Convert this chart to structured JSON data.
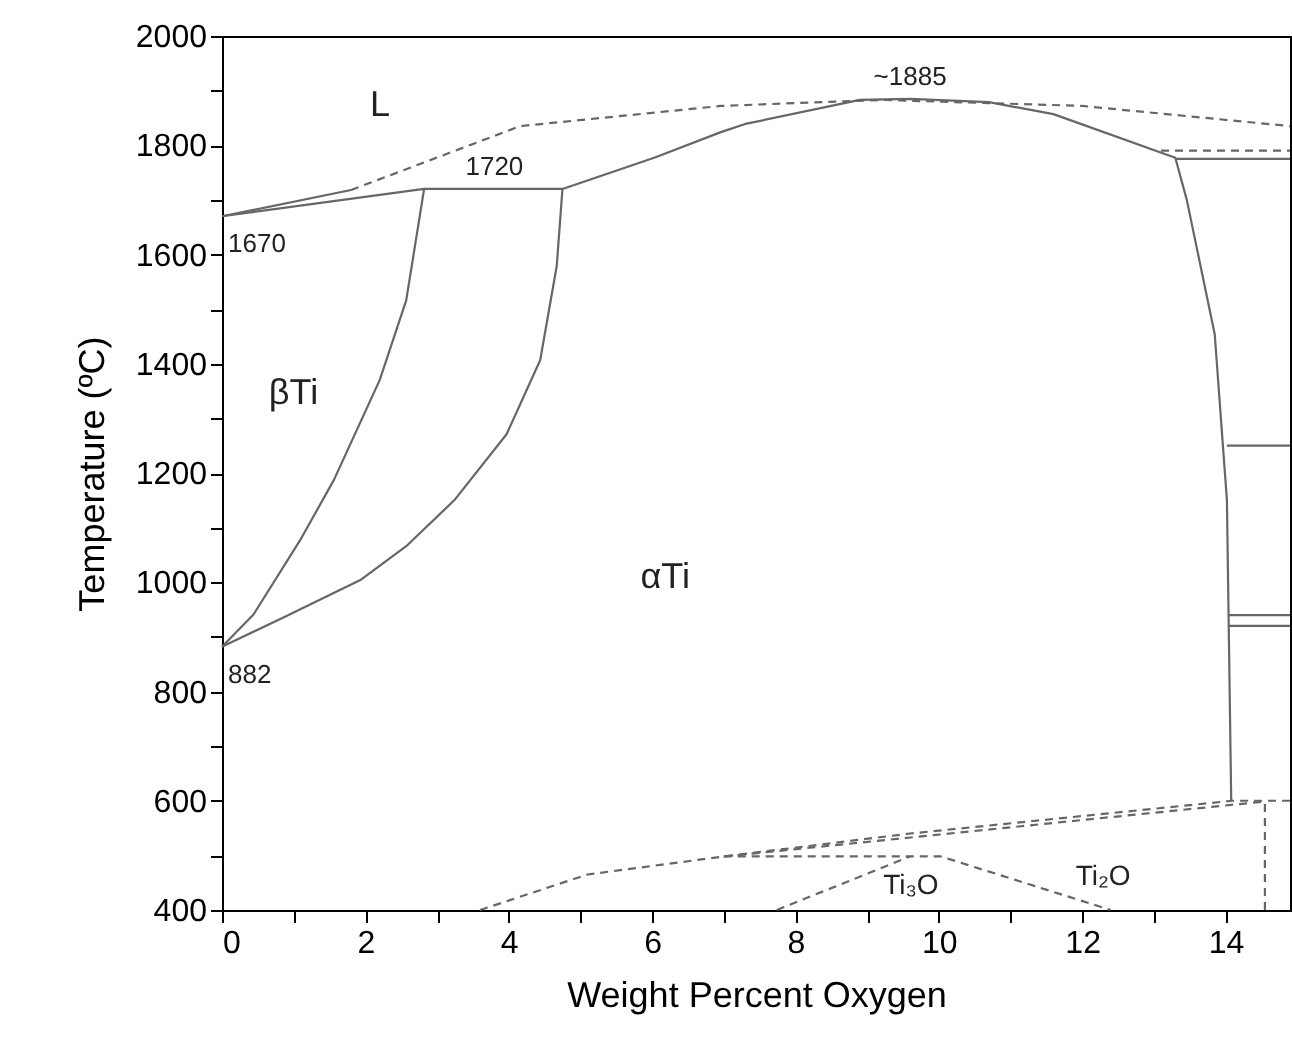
{
  "chart_data": {
    "type": "line",
    "xlabel": "Weight Percent Oxygen",
    "ylabel": "Temperature (ºC)",
    "xlim": [
      0,
      14.9
    ],
    "ylim": [
      400,
      2000
    ],
    "xticks": [
      0,
      {
        "value": 1,
        "label": null
      },
      2,
      {
        "value": 3,
        "label": null
      },
      4,
      {
        "value": 5,
        "label": null
      },
      6,
      {
        "value": 7,
        "label": null
      },
      8,
      {
        "value": 9,
        "label": null
      },
      10,
      {
        "value": 11,
        "label": null
      },
      12,
      {
        "value": 13,
        "label": null
      },
      14
    ],
    "yticks": [
      400,
      {
        "value": 500,
        "label": null
      },
      600,
      {
        "value": 700,
        "label": null
      },
      800,
      {
        "value": 900,
        "label": null
      },
      1000,
      {
        "value": 1100,
        "label": null
      },
      1200,
      {
        "value": 1300,
        "label": null
      },
      1400,
      {
        "value": 1500,
        "label": null
      },
      1600,
      {
        "value": 1700,
        "label": null
      },
      1800,
      {
        "value": 1900,
        "label": null
      },
      2000
    ],
    "line_style": "solid",
    "series": [
      {
        "color": "#666666",
        "x": [
          0,
          1.8
        ],
        "values": [
          1670,
          1718
        ]
      },
      {
        "color": "#666666",
        "x": [
          0,
          2.82,
          4.75,
          6.03,
          6.96,
          7.3,
          8.9,
          9.6,
          10.7,
          11.6,
          13.3,
          13.46,
          13.85,
          14.02,
          14.08
        ],
        "values": [
          1670,
          1720,
          1720,
          1777,
          1824,
          1839,
          1883,
          1885,
          1879,
          1857,
          1777,
          1700,
          1454,
          1150,
          600
        ]
      },
      {
        "color": "#666666",
        "line_style": "dashed",
        "x": [
          1.8,
          4.16,
          6.96,
          9.2,
          12.0,
          14.9
        ],
        "values": [
          1718,
          1835,
          1872,
          1883,
          1872,
          1835
        ]
      },
      {
        "color": "#666666",
        "line_style": "dashed",
        "x": [
          13.1,
          14.9
        ],
        "values": [
          1790,
          1790
        ]
      },
      {
        "color": "#666666",
        "x": [
          13.3,
          14.9
        ],
        "values": [
          1775,
          1775
        ]
      },
      {
        "color": "#666666",
        "x": [
          14.02,
          14.9
        ],
        "values": [
          1250,
          1250
        ]
      },
      {
        "color": "#666666",
        "x": [
          14.05,
          14.9
        ],
        "values": [
          940,
          940
        ]
      },
      {
        "color": "#666666",
        "x": [
          14.05,
          14.9
        ],
        "values": [
          920,
          920
        ]
      },
      {
        "color": "#666666",
        "x": [
          0,
          0.44,
          1.09,
          1.56,
          2.2,
          2.57,
          2.82
        ],
        "values": [
          882,
          941,
          1077,
          1187,
          1370,
          1516,
          1720
        ]
      },
      {
        "color": "#666666",
        "x": [
          0,
          0.9,
          1.93,
          2.57,
          3.24,
          3.97,
          4.44,
          4.67,
          4.75
        ],
        "values": [
          882,
          938,
          1004,
          1066,
          1150,
          1271,
          1407,
          1579,
          1720
        ]
      },
      {
        "color": "#666666",
        "line_style": "dashed",
        "x": [
          3.6,
          5.1,
          7.0,
          9.6,
          14.1,
          14.9
        ],
        "values": [
          400,
          465,
          498,
          540,
          600,
          600
        ]
      },
      {
        "color": "#666666",
        "line_style": "dashed",
        "x": [
          7.0,
          14.5
        ],
        "values": [
          498,
          598
        ]
      },
      {
        "color": "#666666",
        "line_style": "dashed",
        "x": [
          7.0,
          10.03,
          12.4
        ],
        "values": [
          498,
          498,
          400
        ]
      },
      {
        "color": "#666666",
        "line_style": "dashed",
        "x": [
          7.74,
          9.6
        ],
        "values": [
          400,
          498
        ]
      },
      {
        "color": "#666666",
        "line_style": "dashed",
        "x": [
          14.55,
          14.55
        ],
        "values": [
          400,
          598
        ]
      }
    ],
    "annotations": [
      "L",
      "βTi",
      "αTi",
      "Ti₃O",
      "Ti₂O",
      {
        "text": "~1885",
        "x": 9.6,
        "y": 1885
      },
      {
        "text": "1720",
        "x": 3.8,
        "y": 1720
      },
      {
        "text": "1670",
        "x": 0,
        "y": 1670
      },
      {
        "text": "882",
        "x": 0,
        "y": 882
      }
    ]
  }
}
